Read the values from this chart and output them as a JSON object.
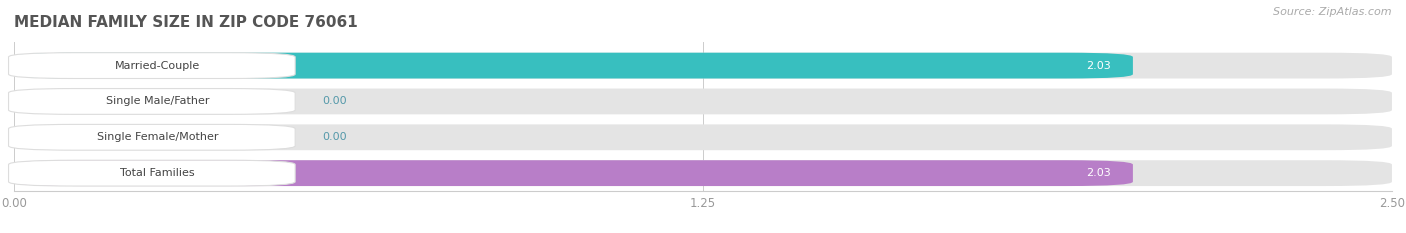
{
  "title": "MEDIAN FAMILY SIZE IN ZIP CODE 76061",
  "source_text": "Source: ZipAtlas.com",
  "categories": [
    "Married-Couple",
    "Single Male/Father",
    "Single Female/Mother",
    "Total Families"
  ],
  "values": [
    2.03,
    0.0,
    0.0,
    2.03
  ],
  "bar_colors": [
    "#38bfbf",
    "#a8b8e8",
    "#f0a0b8",
    "#b87ec8"
  ],
  "bar_bg_color": "#e8e8e8",
  "label_bg_color": "#ffffff",
  "label_left_color": [
    "#38bfbf",
    "#a8b8e8",
    "#f0a0b8",
    "#b87ec8"
  ],
  "xlim": [
    0,
    2.5
  ],
  "xticks": [
    0.0,
    1.25,
    2.5
  ],
  "value_label_color": "#5599aa",
  "value_label_inside_color": "#ffffff",
  "title_color": "#555555",
  "bg_color": "#ffffff",
  "figsize": [
    14.06,
    2.33
  ],
  "dpi": 100
}
